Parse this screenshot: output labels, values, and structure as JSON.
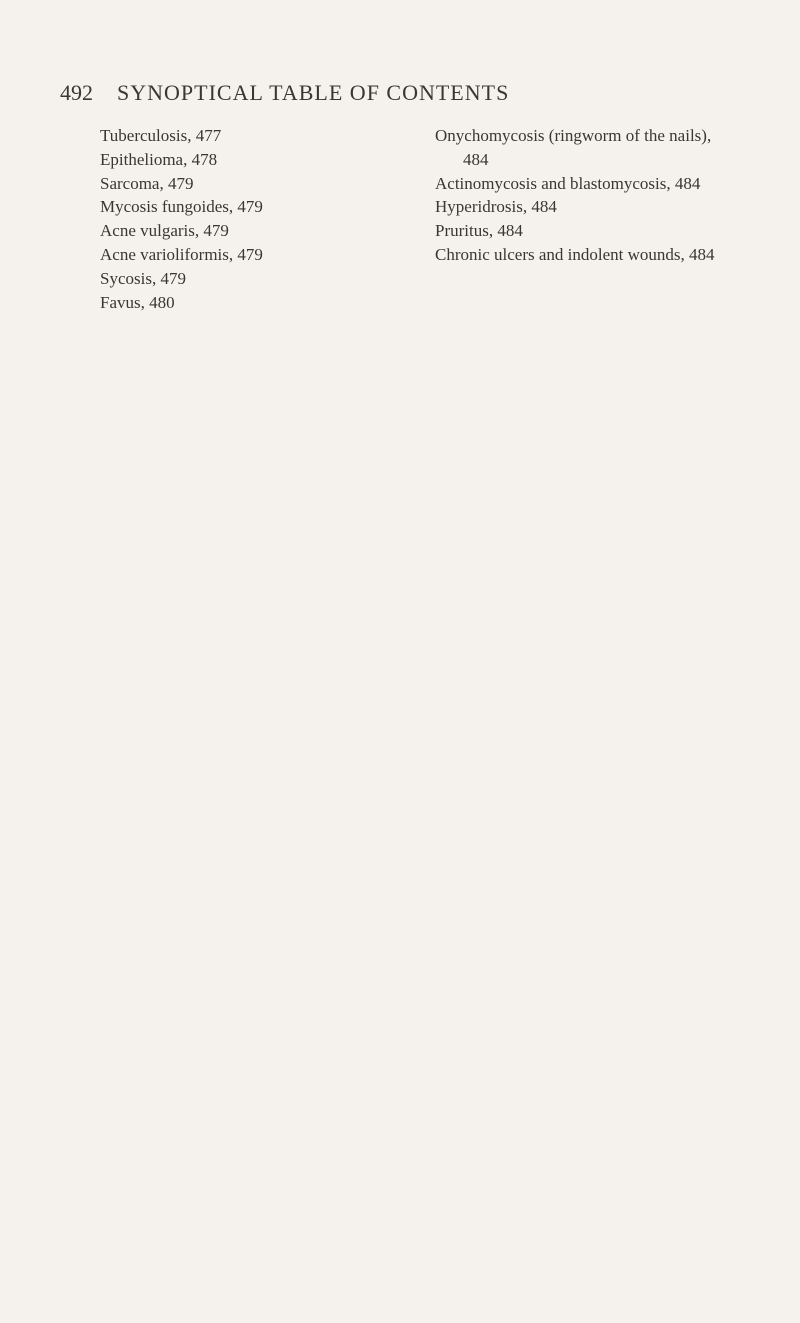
{
  "page": {
    "number": "492",
    "title": "SYNOPTICAL TABLE OF CONTENTS"
  },
  "columns": {
    "left": [
      "Tuberculosis, 477",
      "Epithelioma, 478",
      "Sarcoma, 479",
      "Mycosis fungoides, 479",
      "Acne vulgaris, 479",
      "Acne varioliformis, 479",
      "Sycosis, 479",
      "Favus, 480"
    ],
    "right": [
      "Onychomycosis (ringworm of the nails), 484",
      "Actinomycosis and blastomycosis, 484",
      "Hyperidrosis, 484",
      "Pruritus, 484",
      "Chronic ulcers and indolent wounds, 484"
    ]
  },
  "style": {
    "background_color": "#f5f2ed",
    "text_color": "#3a3632",
    "header_fontsize": 22,
    "body_fontsize": 17,
    "line_height": 1.4
  }
}
